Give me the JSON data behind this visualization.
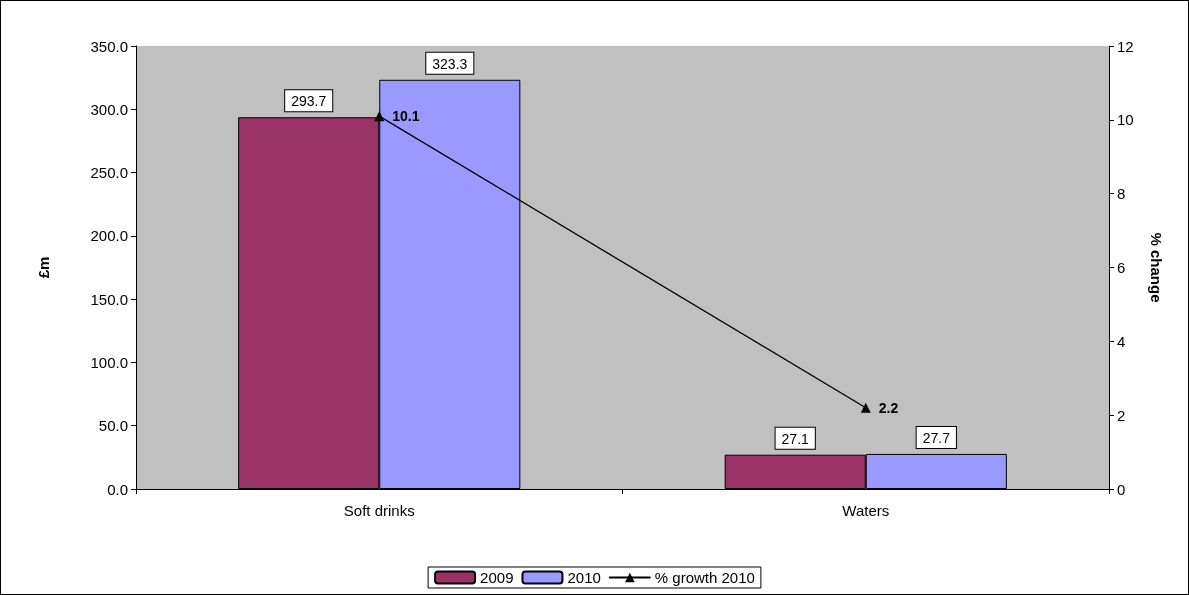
{
  "chart_data": {
    "type": "bar",
    "ylabel": "£m",
    "y2label": "% change",
    "categories": [
      "Soft drinks",
      "Waters"
    ],
    "series": [
      {
        "name": "2009",
        "color": "#993366",
        "values": [
          293.7,
          27.1
        ]
      },
      {
        "name": "2010",
        "color": "#9999ff",
        "values": [
          323.3,
          27.7
        ]
      },
      {
        "name": "% growth 2010",
        "type": "line",
        "axis": "y2",
        "color": "#000000",
        "marker": "triangle",
        "values": [
          10.1,
          2.2
        ]
      }
    ],
    "ylim": [
      0,
      350
    ],
    "yticks": [
      {
        "value": 0,
        "label": "0.0"
      },
      {
        "value": 50,
        "label": "50.0"
      },
      {
        "value": 100,
        "label": "100.0"
      },
      {
        "value": 150,
        "label": "150.0"
      },
      {
        "value": 200,
        "label": "200.0"
      },
      {
        "value": 250,
        "label": "250.0"
      },
      {
        "value": 300,
        "label": "300.0"
      },
      {
        "value": 350,
        "label": "350.0"
      }
    ],
    "y2lim": [
      0,
      12
    ],
    "y2ticks": [
      0,
      2,
      4,
      6,
      8,
      10,
      12
    ],
    "data_labels": true,
    "grid": false,
    "legend": "bottom"
  }
}
